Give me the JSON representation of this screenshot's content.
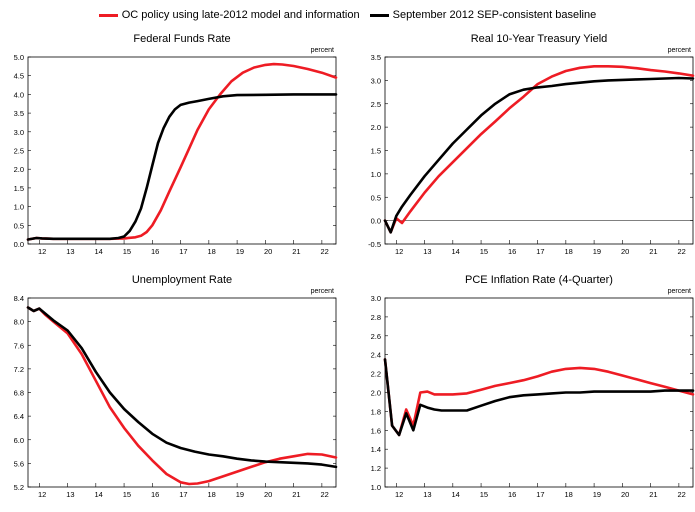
{
  "legend": {
    "policy_label": "OC policy using late-2012 model and information",
    "baseline_label": "September 2012 SEP-consistent baseline"
  },
  "colors": {
    "policy": "#ee1c24",
    "baseline": "#000000"
  },
  "chart_data": [
    {
      "type": "line",
      "title": "Federal Funds Rate",
      "unit": "percent",
      "xlabel": "",
      "ylabel": "",
      "xlim": [
        11.6,
        22.5
      ],
      "ylim": [
        0,
        5
      ],
      "yticks": [
        "0.0",
        "0.5",
        "1.0",
        "1.5",
        "2.0",
        "2.5",
        "3.0",
        "3.5",
        "4.0",
        "4.5",
        "5.0"
      ],
      "xticks": [
        "12",
        "13",
        "14",
        "15",
        "16",
        "17",
        "18",
        "19",
        "20",
        "21",
        "22"
      ],
      "series": [
        {
          "name": "OC policy using late-2012 model and information",
          "color": "policy",
          "x": [
            11.6,
            11.9,
            12.1,
            12.5,
            13,
            14,
            14.5,
            15,
            15.4,
            15.6,
            15.8,
            16,
            16.3,
            16.6,
            17,
            17.3,
            17.6,
            18,
            18.4,
            18.8,
            19.2,
            19.6,
            20,
            20.3,
            20.6,
            21,
            21.5,
            22,
            22.5
          ],
          "y": [
            0.12,
            0.16,
            0.15,
            0.14,
            0.14,
            0.14,
            0.14,
            0.15,
            0.18,
            0.22,
            0.32,
            0.5,
            0.9,
            1.4,
            2.05,
            2.55,
            3.05,
            3.6,
            4.0,
            4.35,
            4.58,
            4.72,
            4.79,
            4.81,
            4.8,
            4.76,
            4.68,
            4.58,
            4.45
          ]
        },
        {
          "name": "September 2012 SEP-consistent baseline",
          "color": "baseline",
          "x": [
            11.6,
            11.9,
            12.1,
            12.5,
            13,
            13.5,
            14,
            14.5,
            14.8,
            15,
            15.2,
            15.4,
            15.6,
            15.8,
            16,
            16.2,
            16.4,
            16.6,
            16.8,
            17,
            17.3,
            17.6,
            18,
            18.5,
            19,
            20,
            21,
            22,
            22.5
          ],
          "y": [
            0.12,
            0.16,
            0.15,
            0.14,
            0.14,
            0.14,
            0.14,
            0.14,
            0.16,
            0.2,
            0.35,
            0.6,
            0.95,
            1.5,
            2.1,
            2.7,
            3.1,
            3.4,
            3.6,
            3.72,
            3.78,
            3.82,
            3.88,
            3.95,
            3.98,
            3.99,
            4.0,
            4.0,
            4.0
          ]
        }
      ]
    },
    {
      "type": "line",
      "title": "Real 10-Year Treasury Yield",
      "unit": "percent",
      "xlabel": "",
      "ylabel": "",
      "xlim": [
        11.6,
        22.5
      ],
      "ylim": [
        -0.5,
        3.5
      ],
      "yticks": [
        "-0.5",
        "0.0",
        "0.5",
        "1.0",
        "1.5",
        "2.0",
        "2.5",
        "3.0",
        "3.5"
      ],
      "xticks": [
        "12",
        "13",
        "14",
        "15",
        "16",
        "17",
        "18",
        "19",
        "20",
        "21",
        "22"
      ],
      "series": [
        {
          "name": "OC policy using late-2012 model and information",
          "color": "policy",
          "x": [
            11.6,
            11.8,
            12,
            12.2,
            12.5,
            13,
            13.5,
            14,
            14.5,
            15,
            15.5,
            16,
            16.5,
            17,
            17.5,
            18,
            18.5,
            19,
            19.5,
            20,
            20.5,
            21,
            21.5,
            22,
            22.5
          ],
          "y": [
            0.0,
            -0.25,
            0.05,
            -0.05,
            0.2,
            0.6,
            0.95,
            1.25,
            1.55,
            1.85,
            2.12,
            2.4,
            2.65,
            2.92,
            3.08,
            3.2,
            3.27,
            3.3,
            3.3,
            3.29,
            3.26,
            3.22,
            3.19,
            3.15,
            3.1
          ]
        },
        {
          "name": "September 2012 SEP-consistent baseline",
          "color": "baseline",
          "x": [
            11.6,
            11.8,
            12,
            12.2,
            12.5,
            13,
            13.5,
            14,
            14.5,
            15,
            15.5,
            16,
            16.5,
            17,
            17.5,
            18,
            18.5,
            19,
            19.5,
            20,
            20.5,
            21,
            21.5,
            22,
            22.5
          ],
          "y": [
            0.0,
            -0.25,
            0.1,
            0.3,
            0.55,
            0.95,
            1.3,
            1.65,
            1.95,
            2.25,
            2.5,
            2.7,
            2.8,
            2.85,
            2.88,
            2.92,
            2.95,
            2.98,
            3.0,
            3.01,
            3.02,
            3.03,
            3.04,
            3.05,
            3.04
          ]
        }
      ]
    },
    {
      "type": "line",
      "title": "Unemployment Rate",
      "unit": "percent",
      "xlabel": "",
      "ylabel": "",
      "xlim": [
        11.6,
        22.5
      ],
      "ylim": [
        5.2,
        8.4
      ],
      "yticks": [
        "5.2",
        "5.6",
        "6.0",
        "6.4",
        "6.8",
        "7.2",
        "7.6",
        "8.0",
        "8.4"
      ],
      "xticks": [
        "12",
        "13",
        "14",
        "15",
        "16",
        "17",
        "18",
        "19",
        "20",
        "21",
        "22"
      ],
      "series": [
        {
          "name": "OC policy using late-2012 model and information",
          "color": "policy",
          "x": [
            11.6,
            11.8,
            12,
            12.2,
            12.5,
            13,
            13.5,
            14,
            14.5,
            15,
            15.5,
            16,
            16.5,
            17,
            17.3,
            17.6,
            18,
            18.5,
            19,
            19.5,
            20,
            20.5,
            21,
            21.5,
            22,
            22.5
          ],
          "y": [
            8.24,
            8.18,
            8.22,
            8.12,
            8.0,
            7.8,
            7.45,
            7.0,
            6.55,
            6.2,
            5.9,
            5.65,
            5.42,
            5.28,
            5.25,
            5.26,
            5.3,
            5.38,
            5.46,
            5.54,
            5.62,
            5.68,
            5.72,
            5.76,
            5.75,
            5.7
          ]
        },
        {
          "name": "September 2012 SEP-consistent baseline",
          "color": "baseline",
          "x": [
            11.6,
            11.8,
            12,
            12.2,
            12.5,
            13,
            13.5,
            14,
            14.5,
            15,
            15.5,
            16,
            16.5,
            17,
            17.5,
            18,
            18.5,
            19,
            19.5,
            20,
            20.5,
            21,
            21.5,
            22,
            22.5
          ],
          "y": [
            8.24,
            8.18,
            8.22,
            8.14,
            8.02,
            7.85,
            7.55,
            7.15,
            6.8,
            6.52,
            6.3,
            6.1,
            5.95,
            5.86,
            5.8,
            5.75,
            5.72,
            5.68,
            5.65,
            5.63,
            5.62,
            5.61,
            5.6,
            5.58,
            5.54
          ]
        }
      ]
    },
    {
      "type": "line",
      "title": "PCE Inflation Rate (4-Quarter)",
      "unit": "percent",
      "xlabel": "",
      "ylabel": "",
      "xlim": [
        11.6,
        22.5
      ],
      "ylim": [
        1.0,
        3.0
      ],
      "yticks": [
        "1.0",
        "1.2",
        "1.4",
        "1.6",
        "1.8",
        "2.0",
        "2.2",
        "2.4",
        "2.6",
        "2.8",
        "3.0"
      ],
      "xticks": [
        "12",
        "13",
        "14",
        "15",
        "16",
        "17",
        "18",
        "19",
        "20",
        "21",
        "22"
      ],
      "series": [
        {
          "name": "OC policy using late-2012 model and information",
          "color": "policy",
          "x": [
            11.6,
            11.85,
            12.1,
            12.35,
            12.6,
            12.85,
            13.1,
            13.35,
            13.6,
            14,
            14.5,
            15,
            15.5,
            16,
            16.5,
            17,
            17.5,
            18,
            18.5,
            19,
            19.5,
            20,
            20.5,
            21,
            21.5,
            22,
            22.5
          ],
          "y": [
            2.35,
            1.65,
            1.55,
            1.82,
            1.65,
            2.0,
            2.01,
            1.98,
            1.98,
            1.98,
            1.99,
            2.03,
            2.07,
            2.1,
            2.13,
            2.17,
            2.22,
            2.25,
            2.26,
            2.25,
            2.22,
            2.18,
            2.14,
            2.1,
            2.06,
            2.02,
            1.98
          ]
        },
        {
          "name": "September 2012 SEP-consistent baseline",
          "color": "baseline",
          "x": [
            11.6,
            11.85,
            12.1,
            12.35,
            12.6,
            12.85,
            13.1,
            13.35,
            13.6,
            14,
            14.5,
            15,
            15.5,
            16,
            16.5,
            17,
            17.5,
            18,
            18.5,
            19,
            19.5,
            20,
            20.5,
            21,
            21.5,
            22,
            22.5
          ],
          "y": [
            2.35,
            1.65,
            1.55,
            1.78,
            1.6,
            1.87,
            1.84,
            1.82,
            1.81,
            1.81,
            1.81,
            1.86,
            1.91,
            1.95,
            1.97,
            1.98,
            1.99,
            2.0,
            2.0,
            2.01,
            2.01,
            2.01,
            2.01,
            2.01,
            2.02,
            2.02,
            2.02
          ]
        }
      ]
    }
  ]
}
